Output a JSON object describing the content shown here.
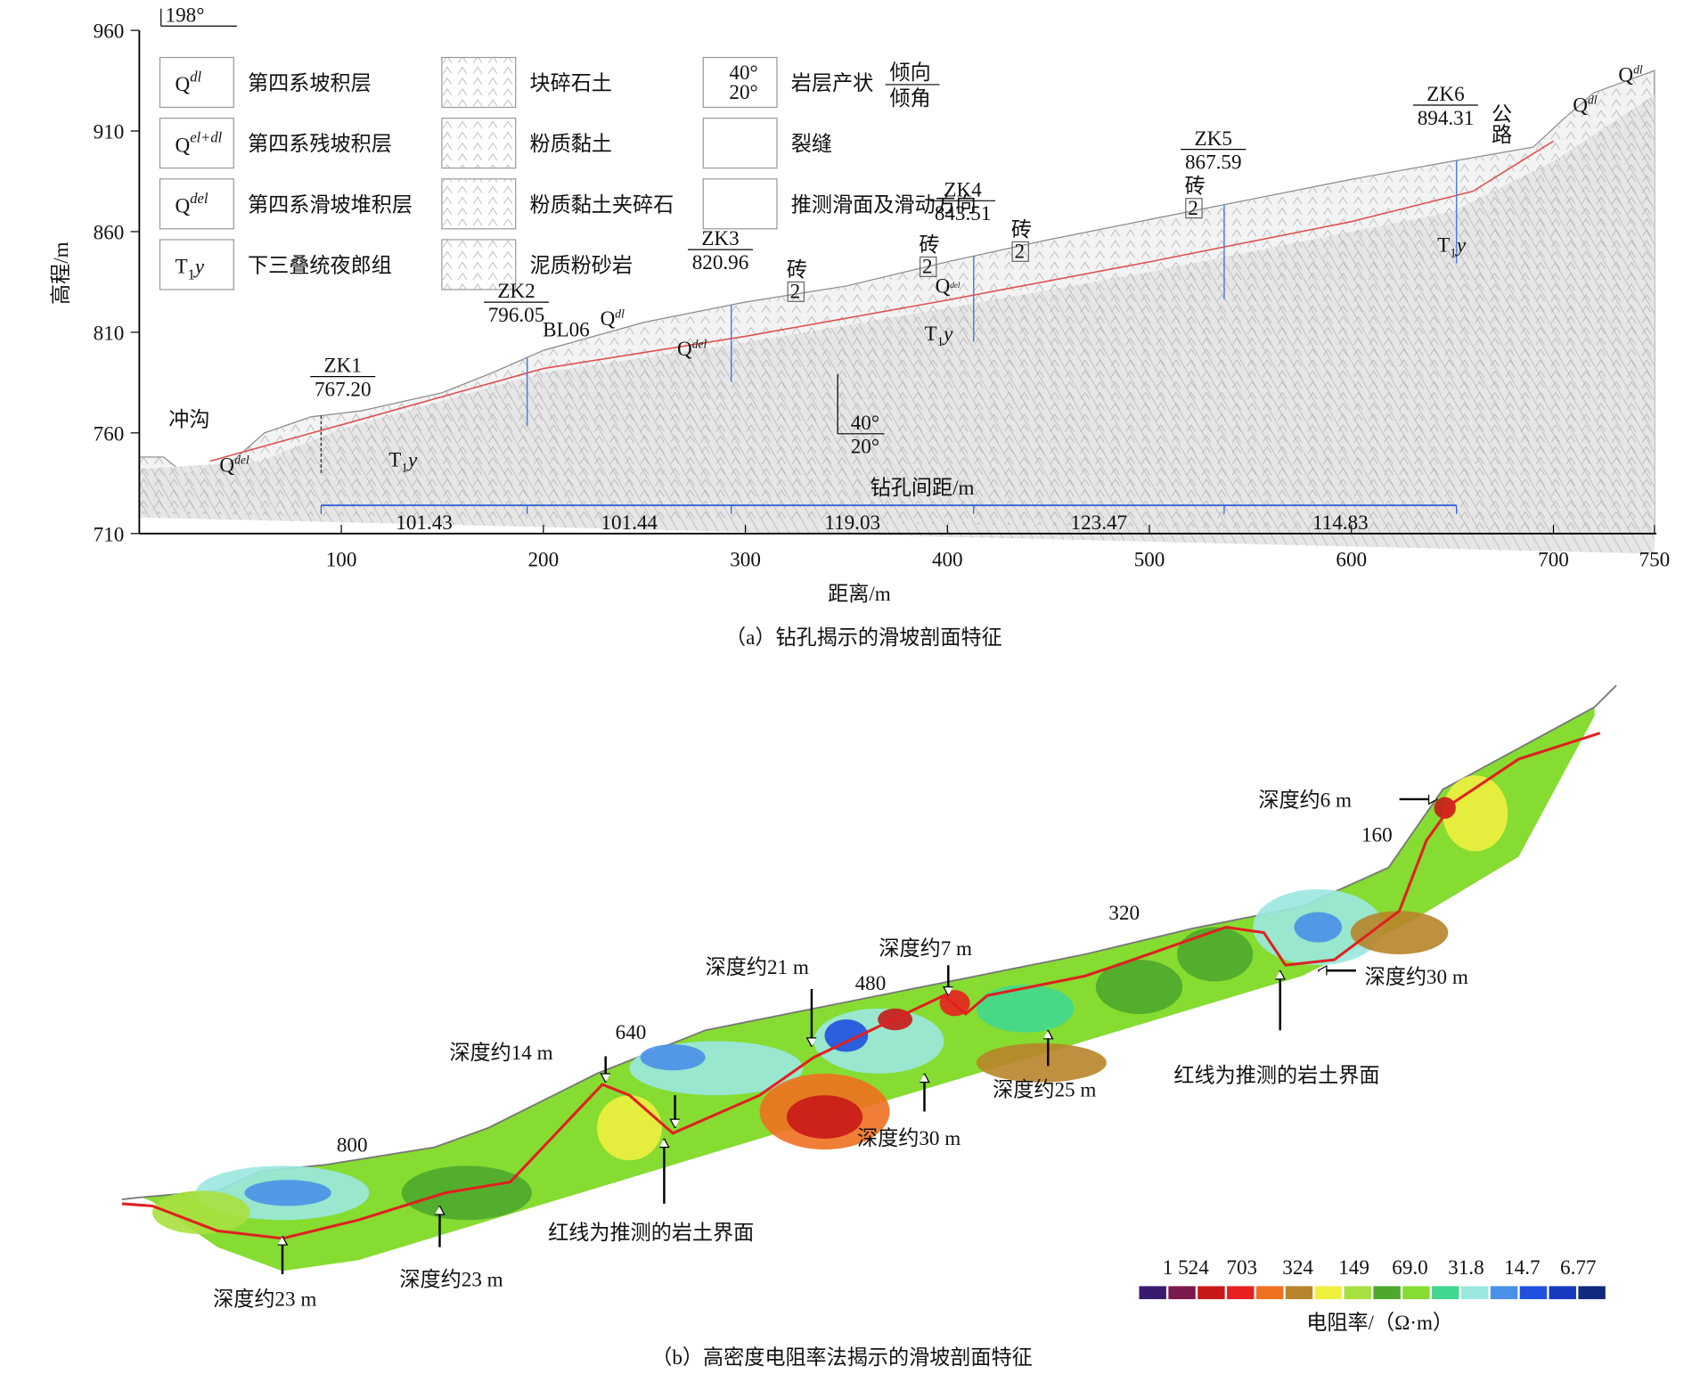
{
  "figure_a": {
    "north": "198°",
    "y_label": "高程/m",
    "x_label": "距离/m",
    "yticks": [
      960,
      910,
      860,
      810,
      760,
      710
    ],
    "xticks": [
      100,
      200,
      300,
      400,
      500,
      600,
      700,
      750
    ],
    "legend": [
      {
        "symbol": "Q",
        "sup": "dl",
        "label": "第四系坡积层"
      },
      {
        "symbol": "Q",
        "sup": "el+dl",
        "label": "第四系残坡积层"
      },
      {
        "symbol": "Q",
        "sup": "del",
        "label": "第四系滑坡堆积层"
      },
      {
        "symbol": "T",
        "sub": "1",
        "italic": "y",
        "label": "下三叠统夜郎组"
      },
      {
        "label": "块碎石土"
      },
      {
        "label": "粉质黏土"
      },
      {
        "label": "粉质黏土夹碎石"
      },
      {
        "label": "泥质粉砂岩"
      },
      {
        "symbol_top": "40°",
        "symbol_bottom": "20°",
        "label": "岩层产状",
        "fraction_top": "倾向",
        "fraction_bottom": "倾角"
      },
      {
        "label": "裂缝"
      },
      {
        "label": "推测滑面及滑动方向"
      }
    ],
    "boreholes": [
      {
        "name": "ZK1",
        "elevation": "767.20"
      },
      {
        "name": "ZK2",
        "elevation": "796.05"
      },
      {
        "name": "ZK3",
        "elevation": "820.96"
      },
      {
        "name": "ZK4",
        "elevation": "843.51"
      },
      {
        "name": "ZK5",
        "elevation": "867.59"
      },
      {
        "name": "ZK6",
        "elevation": "894.31"
      }
    ],
    "spacing_title": "钻孔间距/m",
    "spacings": [
      101.43,
      101.44,
      119.03,
      123.47,
      114.83
    ],
    "places": [
      "冲沟",
      "BL06",
      "公路"
    ],
    "strata_labels": [
      {
        "base": "Q",
        "sup": "del"
      },
      {
        "base": "Q",
        "sup": "dl"
      },
      {
        "base": "Q",
        "sup": "del"
      },
      {
        "base": "Q",
        "sup": "del"
      },
      {
        "base": "Q",
        "sup": "dl"
      },
      {
        "base": "Q",
        "sup": "dl"
      }
    ],
    "bedrock_labels": [
      {
        "base": "T",
        "sub": "1",
        "italic": "y"
      },
      {
        "base": "T",
        "sub": "1",
        "italic": "y"
      },
      {
        "base": "T",
        "sub": "1",
        "italic": "y"
      }
    ],
    "brick_markers": [
      {
        "text": "砖",
        "num": "2"
      },
      {
        "text": "砖",
        "num": "2"
      },
      {
        "text": "砖",
        "num": "2"
      },
      {
        "text": "砖",
        "num": "2"
      }
    ],
    "attitude": {
      "top": "40°",
      "bottom": "20°"
    },
    "caption": "（a）钻孔揭示的滑坡剖面特征"
  },
  "figure_b": {
    "labels": [
      "深度约6 m",
      "160",
      "320",
      "深度约30 m",
      "红线为推测的岩土界面",
      "深度约7 m",
      "深度约21 m",
      "480",
      "深度约14 m",
      "640",
      "深度约25 m",
      "深度约30 m",
      "红线为推测的岩土界面",
      "800",
      "深度约23 m",
      "深度约23 m"
    ],
    "colorbar": {
      "values": [
        "1 524",
        "703",
        "324",
        "149",
        "69.0",
        "31.8",
        "14.7",
        "6.77"
      ],
      "title": "电阻率/（Ω·m）",
      "colors": [
        "#3a1a6e",
        "#7a1a4a",
        "#c81818",
        "#e82020",
        "#f07020",
        "#b8842a",
        "#f0f040",
        "#a8e040",
        "#4ea82e",
        "#86dc30",
        "#40d890",
        "#9ae8e0",
        "#4a90e8",
        "#2050e0",
        "#1838c0",
        "#102a80"
      ]
    },
    "caption": "（b）高密度电阻率法揭示的滑坡剖面特征"
  }
}
